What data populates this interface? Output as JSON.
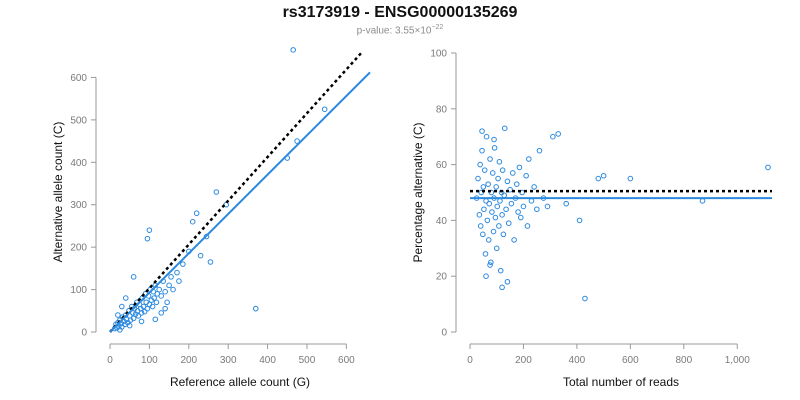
{
  "header": {
    "title": "rs3173919 - ENSG00000135269",
    "pvalue_prefix": "p-value: 3.55×10",
    "pvalue_exponent": "−22"
  },
  "colors": {
    "series": "#2c8ae0",
    "expected": "#000000",
    "axis": "#9a9a9a"
  },
  "chart_data": [
    {
      "type": "scatter",
      "title": "",
      "xlabel": "Reference allele count (G)",
      "ylabel": "Alternative allele count (C)",
      "xlim": [
        0,
        660
      ],
      "ylim": [
        0,
        660
      ],
      "xticks": [
        "0",
        "100",
        "200",
        "300",
        "400",
        "500",
        "600"
      ],
      "yticks": [
        "0",
        "100",
        "200",
        "300",
        "400",
        "500",
        "600"
      ],
      "grid": false,
      "reference_line": {
        "style": "dotted",
        "color": "#000000",
        "points": [
          [
            0,
            0
          ],
          [
            640,
            660
          ]
        ]
      },
      "fit_line": {
        "style": "solid",
        "color": "#2c8ae0",
        "points": [
          [
            0,
            0
          ],
          [
            660,
            612
          ]
        ]
      },
      "points": [
        [
          12,
          8
        ],
        [
          15,
          18
        ],
        [
          18,
          10
        ],
        [
          20,
          22
        ],
        [
          22,
          14
        ],
        [
          25,
          28
        ],
        [
          28,
          20
        ],
        [
          30,
          12
        ],
        [
          32,
          35
        ],
        [
          35,
          25
        ],
        [
          38,
          18
        ],
        [
          40,
          40
        ],
        [
          42,
          30
        ],
        [
          45,
          22
        ],
        [
          48,
          50
        ],
        [
          50,
          38
        ],
        [
          52,
          28
        ],
        [
          55,
          60
        ],
        [
          58,
          45
        ],
        [
          60,
          32
        ],
        [
          62,
          55
        ],
        [
          65,
          42
        ],
        [
          68,
          70
        ],
        [
          70,
          50
        ],
        [
          72,
          38
        ],
        [
          75,
          65
        ],
        [
          78,
          55
        ],
        [
          80,
          45
        ],
        [
          82,
          80
        ],
        [
          85,
          60
        ],
        [
          88,
          48
        ],
        [
          90,
          90
        ],
        [
          92,
          70
        ],
        [
          95,
          55
        ],
        [
          98,
          85
        ],
        [
          100,
          65
        ],
        [
          102,
          100
        ],
        [
          105,
          75
        ],
        [
          108,
          60
        ],
        [
          110,
          95
        ],
        [
          112,
          80
        ],
        [
          115,
          110
        ],
        [
          118,
          70
        ],
        [
          120,
          90
        ],
        [
          125,
          100
        ],
        [
          130,
          85
        ],
        [
          135,
          120
        ],
        [
          140,
          95
        ],
        [
          145,
          70
        ],
        [
          150,
          110
        ],
        [
          155,
          130
        ],
        [
          160,
          100
        ],
        [
          170,
          140
        ],
        [
          175,
          120
        ],
        [
          185,
          160
        ],
        [
          200,
          190
        ],
        [
          210,
          260
        ],
        [
          220,
          280
        ],
        [
          230,
          180
        ],
        [
          245,
          225
        ],
        [
          255,
          165
        ],
        [
          270,
          330
        ],
        [
          295,
          300
        ],
        [
          370,
          55
        ],
        [
          450,
          410
        ],
        [
          465,
          665
        ],
        [
          475,
          450
        ],
        [
          545,
          525
        ],
        [
          100,
          240
        ],
        [
          95,
          220
        ],
        [
          60,
          130
        ],
        [
          40,
          80
        ],
        [
          30,
          60
        ],
        [
          20,
          40
        ],
        [
          140,
          55
        ],
        [
          130,
          45
        ],
        [
          115,
          30
        ],
        [
          80,
          25
        ],
        [
          50,
          15
        ],
        [
          25,
          5
        ]
      ]
    },
    {
      "type": "scatter",
      "title": "",
      "xlabel": "Total number of reads",
      "ylabel": "Percentage alternative (C)",
      "xlim": [
        0,
        1130
      ],
      "ylim": [
        0,
        100
      ],
      "xticks": [
        "0",
        "200",
        "400",
        "600",
        "800",
        "1,000"
      ],
      "yticks": [
        "0",
        "20",
        "40",
        "60",
        "80",
        "100"
      ],
      "grid": false,
      "reference_line": {
        "style": "dotted",
        "color": "#000000",
        "y": 50.5
      },
      "fit_line": {
        "style": "solid",
        "color": "#2c8ae0",
        "y": 48
      },
      "points": [
        [
          25,
          48
        ],
        [
          30,
          55
        ],
        [
          35,
          42
        ],
        [
          38,
          60
        ],
        [
          40,
          38
        ],
        [
          42,
          50
        ],
        [
          45,
          65
        ],
        [
          48,
          35
        ],
        [
          50,
          52
        ],
        [
          52,
          44
        ],
        [
          55,
          58
        ],
        [
          58,
          28
        ],
        [
          60,
          47
        ],
        [
          62,
          70
        ],
        [
          65,
          40
        ],
        [
          68,
          53
        ],
        [
          70,
          33
        ],
        [
          72,
          46
        ],
        [
          75,
          62
        ],
        [
          78,
          25
        ],
        [
          80,
          50
        ],
        [
          82,
          43
        ],
        [
          85,
          57
        ],
        [
          88,
          36
        ],
        [
          90,
          48
        ],
        [
          92,
          66
        ],
        [
          95,
          41
        ],
        [
          98,
          52
        ],
        [
          100,
          30
        ],
        [
          102,
          45
        ],
        [
          105,
          55
        ],
        [
          108,
          38
        ],
        [
          110,
          61
        ],
        [
          112,
          47
        ],
        [
          115,
          22
        ],
        [
          118,
          50
        ],
        [
          120,
          42
        ],
        [
          122,
          58
        ],
        [
          125,
          35
        ],
        [
          128,
          49
        ],
        [
          130,
          73
        ],
        [
          135,
          44
        ],
        [
          140,
          54
        ],
        [
          145,
          39
        ],
        [
          150,
          51
        ],
        [
          155,
          46
        ],
        [
          160,
          57
        ],
        [
          165,
          33
        ],
        [
          170,
          48
        ],
        [
          175,
          53
        ],
        [
          180,
          43
        ],
        [
          185,
          59
        ],
        [
          190,
          41
        ],
        [
          195,
          50
        ],
        [
          200,
          45
        ],
        [
          210,
          56
        ],
        [
          215,
          38
        ],
        [
          220,
          62
        ],
        [
          230,
          47
        ],
        [
          240,
          52
        ],
        [
          250,
          44
        ],
        [
          260,
          65
        ],
        [
          275,
          48
        ],
        [
          290,
          45
        ],
        [
          310,
          70
        ],
        [
          330,
          71
        ],
        [
          360,
          46
        ],
        [
          410,
          40
        ],
        [
          430,
          12
        ],
        [
          480,
          55
        ],
        [
          500,
          56
        ],
        [
          600,
          55
        ],
        [
          870,
          47
        ],
        [
          1115,
          59
        ],
        [
          60,
          20
        ],
        [
          75,
          24
        ],
        [
          140,
          18
        ],
        [
          120,
          16
        ],
        [
          45,
          72
        ],
        [
          90,
          69
        ]
      ]
    }
  ]
}
